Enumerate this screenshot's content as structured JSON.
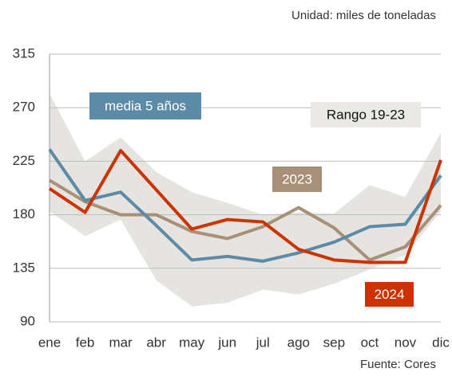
{
  "chart_data": {
    "type": "line",
    "subtitle": "Unidad: miles de toneladas",
    "source": "Fuente: Cores",
    "categories": [
      "ene",
      "feb",
      "mar",
      "abr",
      "may",
      "jun",
      "jul",
      "ago",
      "sep",
      "oct",
      "nov",
      "dic"
    ],
    "ylim": [
      90,
      315
    ],
    "yticks": [
      90,
      135,
      180,
      225,
      270,
      315
    ],
    "grid": true,
    "band": {
      "name": "Rango 19-23",
      "color": "#e6e4e1",
      "upper": [
        282,
        225,
        245,
        216,
        199,
        190,
        180,
        182,
        181,
        205,
        195,
        249
      ],
      "lower": [
        183,
        162,
        176,
        125,
        103,
        106,
        117,
        113,
        122,
        134,
        146,
        183
      ]
    },
    "series": [
      {
        "name": "media 5 años",
        "color": "#5b8ba6",
        "values": [
          235,
          192,
          199,
          171,
          142,
          145,
          141,
          148,
          157,
          170,
          172,
          213
        ]
      },
      {
        "name": "2023",
        "color": "#a89078",
        "values": [
          209,
          191,
          180,
          180,
          166,
          160,
          170,
          186,
          169,
          142,
          153,
          188
        ]
      },
      {
        "name": "2024",
        "color": "#cc3300",
        "values": [
          202,
          182,
          234,
          201,
          168,
          176,
          174,
          151,
          142,
          140,
          140,
          226
        ]
      }
    ]
  }
}
